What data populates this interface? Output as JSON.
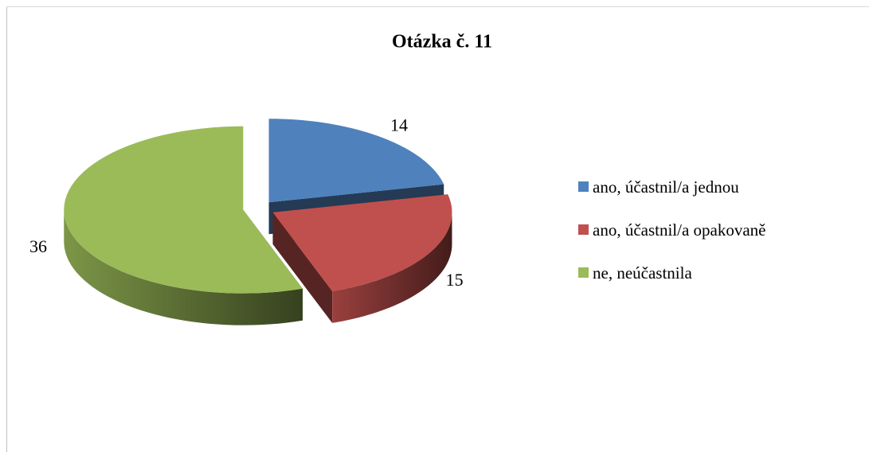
{
  "chart_data": {
    "type": "pie",
    "title": "Otázka č. 11",
    "categories": [
      "ano, účastnil/a jednou",
      "ano, účastnil/a opakovaně",
      "ne, neúčastnila"
    ],
    "values": [
      14,
      15,
      36
    ],
    "colors": [
      "#4f81bd",
      "#c0504d",
      "#9bbb59"
    ],
    "legend": "right"
  }
}
